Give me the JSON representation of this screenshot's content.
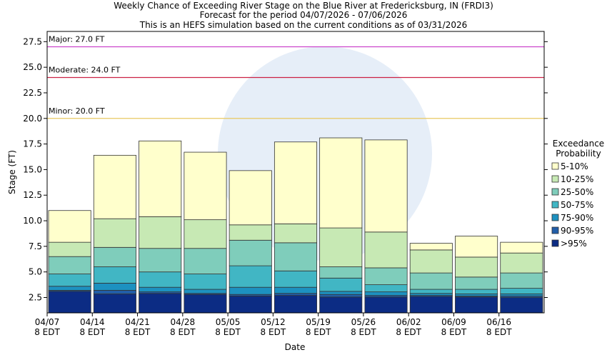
{
  "chart_data": {
    "type": "floating_bar",
    "title": [
      "Weekly Chance of Exceeding River Stage on the Blue River at Fredericksburg, IN (FRDI3)",
      "Forecast for the period 04/07/2026 - 07/06/2026",
      "This is an HEFS simulation based on the current conditions as of 03/31/2026"
    ],
    "x_label": "Date",
    "y_label": "Stage (FT)",
    "legend_title": [
      "Exceedance",
      "Probability"
    ],
    "categories": [
      [
        "04/07",
        "8 EDT"
      ],
      [
        "04/14",
        "8 EDT"
      ],
      [
        "04/21",
        "8 EDT"
      ],
      [
        "04/28",
        "8 EDT"
      ],
      [
        "05/05",
        "8 EDT"
      ],
      [
        "05/12",
        "8 EDT"
      ],
      [
        "05/19",
        "8 EDT"
      ],
      [
        "05/26",
        "8 EDT"
      ],
      [
        "06/02",
        "8 EDT"
      ],
      [
        "06/09",
        "8 EDT"
      ],
      [
        "06/16",
        "8 EDT"
      ]
    ],
    "series": [
      {
        "name": ">95%",
        "color": "#0c2c84",
        "values": [
          3.1,
          2.85,
          2.9,
          2.8,
          2.65,
          2.7,
          2.55,
          2.55,
          2.6,
          2.55,
          2.5
        ]
      },
      {
        "name": "90-95%",
        "color": "#225ea8",
        "values": [
          3.2,
          3.2,
          3.05,
          2.9,
          2.8,
          2.9,
          2.8,
          2.7,
          2.7,
          2.65,
          2.65
        ]
      },
      {
        "name": "75-90%",
        "color": "#1d91c0",
        "values": [
          3.6,
          3.9,
          3.5,
          3.3,
          3.5,
          3.5,
          3.1,
          3.05,
          2.9,
          2.85,
          2.85
        ]
      },
      {
        "name": "50-75%",
        "color": "#41b6c4",
        "values": [
          4.8,
          5.5,
          5.0,
          4.8,
          5.6,
          5.1,
          4.4,
          3.75,
          3.3,
          3.3,
          3.4
        ]
      },
      {
        "name": "25-50%",
        "color": "#7fcdbb",
        "values": [
          6.5,
          7.4,
          7.3,
          7.3,
          8.1,
          7.85,
          5.5,
          5.4,
          4.9,
          4.5,
          4.9
        ]
      },
      {
        "name": "10-25%",
        "color": "#c7e9b4",
        "values": [
          7.9,
          10.2,
          10.4,
          10.1,
          9.6,
          9.7,
          9.3,
          8.9,
          7.15,
          6.45,
          6.85
        ]
      },
      {
        "name": "5-10%",
        "color": "#ffffcc",
        "values": [
          11.0,
          16.4,
          17.8,
          16.7,
          14.9,
          17.7,
          18.1,
          17.9,
          7.8,
          8.5,
          7.9
        ]
      }
    ],
    "thresholds": [
      {
        "label": "Major: 27.0 FT",
        "value": 27.0,
        "color": "#cc44cc"
      },
      {
        "label": "Moderate: 24.0 FT",
        "value": 24.0,
        "color": "#cc2244"
      },
      {
        "label": "Minor: 20.0 FT",
        "value": 20.0,
        "color": "#e8c860"
      }
    ],
    "ylim": [
      1.0,
      28.5
    ],
    "yticks": [
      2.5,
      {
        "value": 5,
        "label": "5.0"
      },
      7.5,
      {
        "value": 10,
        "label": "10.0"
      },
      12.5,
      {
        "value": 15,
        "label": "15.0"
      },
      17.5,
      {
        "value": 20,
        "label": "20.0"
      },
      22.5,
      {
        "value": 25,
        "label": "25.0"
      },
      27.5
    ],
    "legend_position": "right"
  }
}
